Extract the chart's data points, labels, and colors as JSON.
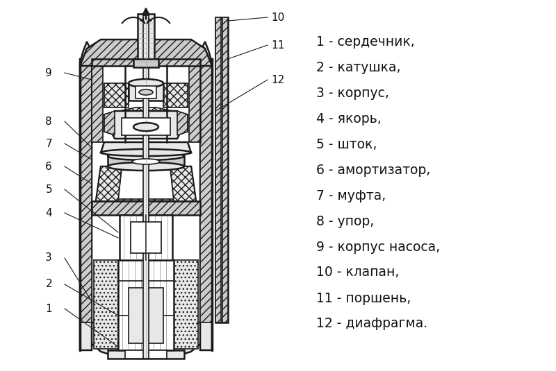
{
  "bg_color": "#ffffff",
  "legend_items": [
    "1 - сердечник,",
    "2 - катушка,",
    "3 - корпус,",
    "4 - якорь,",
    "5 - шток,",
    "6 - амортизатор,",
    "7 - муфта,",
    "8 - упор,",
    "9 - корпус насоса,",
    "10 - клапан,",
    "11 - поршень,",
    "12 - диафрагма."
  ],
  "lc": "#1a1a1a",
  "fc_white": "#ffffff",
  "fc_light": "#e8e8e8",
  "fc_mid": "#cccccc",
  "fc_dark": "#999999",
  "fc_hatch": "#dddddd",
  "text_color": "#111111",
  "font_size_legend": 13.5,
  "font_size_labels": 11
}
